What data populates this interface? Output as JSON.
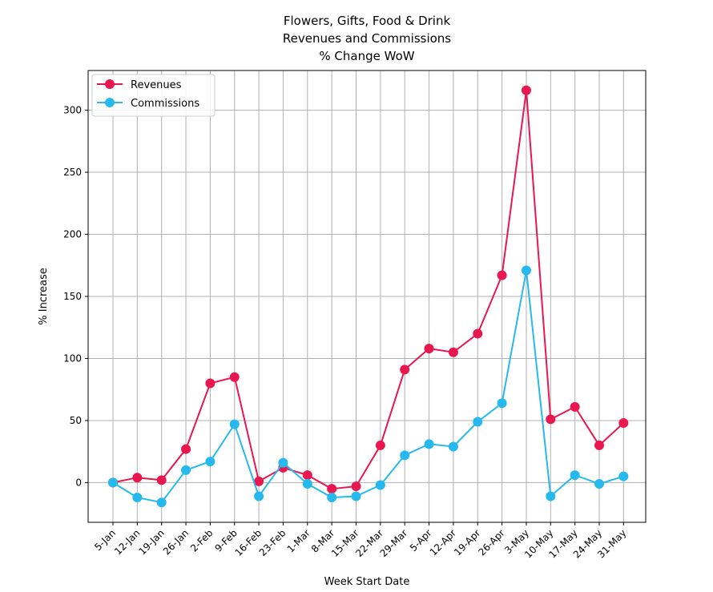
{
  "chart_data": {
    "type": "line",
    "title_lines": [
      "Flowers, Gifts, Food & Drink",
      "Revenues and Commissions",
      "% Change WoW"
    ],
    "xlabel": "Week Start Date",
    "ylabel": "% Increase",
    "categories": [
      "5-Jan",
      "12-Jan",
      "19-Jan",
      "26-Jan",
      "2-Feb",
      "9-Feb",
      "16-Feb",
      "23-Feb",
      "1-Mar",
      "8-Mar",
      "15-Mar",
      "22-Mar",
      "29-Mar",
      "5-Apr",
      "12-Apr",
      "19-Apr",
      "26-Apr",
      "3-May",
      "10-May",
      "17-May",
      "24-May",
      "31-May"
    ],
    "ylim": [
      -32,
      332
    ],
    "yticks": [
      0,
      50,
      100,
      150,
      200,
      250,
      300
    ],
    "grid": true,
    "legend_position": "top-left",
    "series": [
      {
        "name": "Revenues",
        "color": "#e8174f",
        "values": [
          0,
          4,
          2,
          27,
          80,
          85,
          1,
          12,
          6,
          -5,
          -3,
          30,
          91,
          108,
          105,
          120,
          167,
          316,
          51,
          61,
          30,
          48
        ]
      },
      {
        "name": "Commissions",
        "color": "#25b9ee",
        "values": [
          0,
          -12,
          -16,
          10,
          17,
          47,
          -11,
          16,
          -1,
          -12,
          -11,
          -2,
          22,
          31,
          29,
          49,
          64,
          171,
          -11,
          6,
          -1,
          5
        ]
      }
    ]
  }
}
